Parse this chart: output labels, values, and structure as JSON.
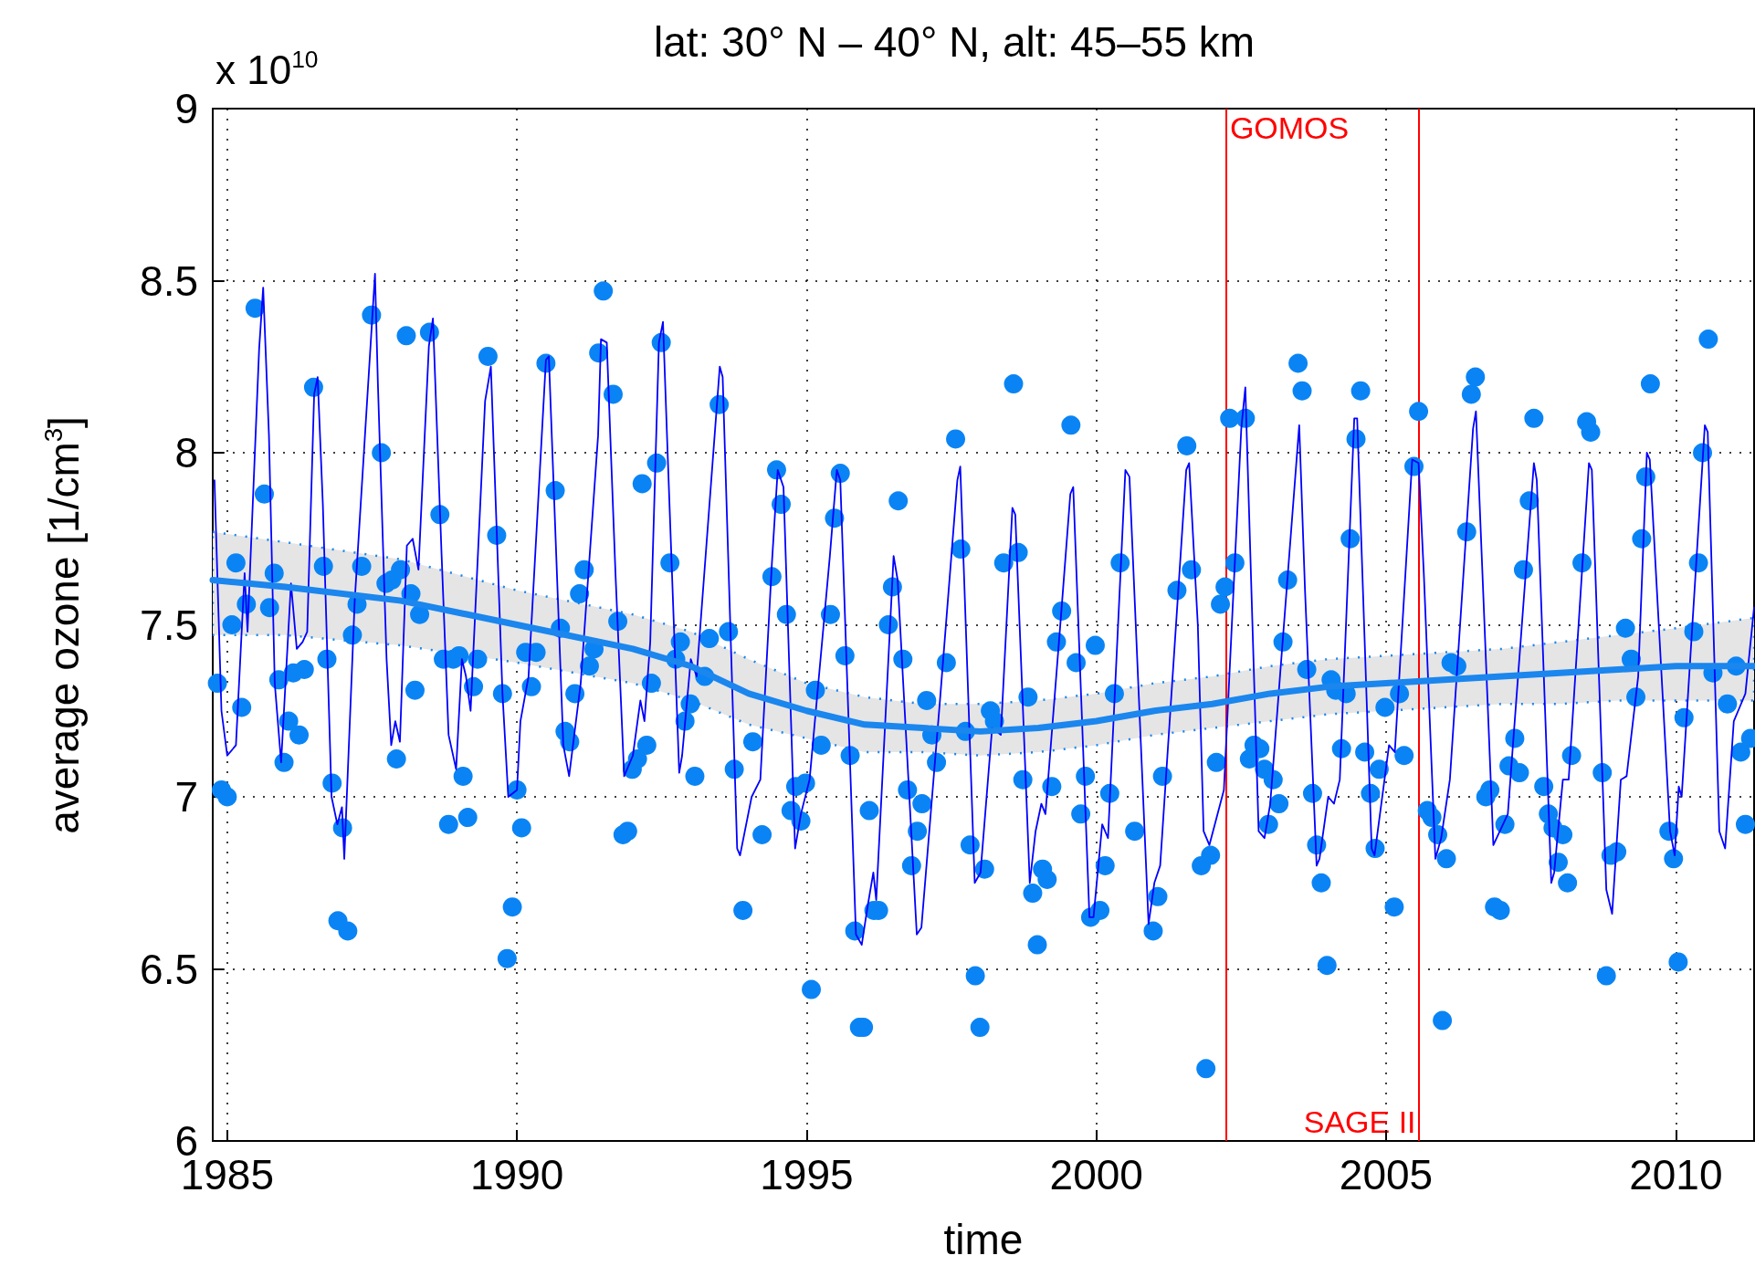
{
  "chart_data": {
    "type": "scatter",
    "title": "lat: 30° N – 40° N, alt: 45–55 km",
    "xlabel": "time",
    "ylabel": "average ozone [1/cm$^{3}$]",
    "annotations": [
      "x 10$^{10}$"
    ],
    "xlim": [
      1984.75,
      2011.35
    ],
    "xticks": [
      1985,
      1990,
      1995,
      2000,
      2005,
      2010
    ],
    "ylim": [
      6,
      9
    ],
    "yticks": [
      6,
      6.5,
      7,
      7.5,
      8,
      8.5,
      9
    ],
    "grid": true,
    "ref_lines": [
      {
        "axis": "x",
        "value": 2002.24,
        "label": "GOMOS",
        "color": "#ff0000"
      },
      {
        "axis": "x",
        "value": 2005.56,
        "label": "SAGE II",
        "color": "#ff0000"
      }
    ],
    "series": [
      {
        "type": "line",
        "color": "#0000ff",
        "marker": "none",
        "line_style": "solid",
        "x": [
          1984.78,
          1984.9,
          1985.0,
          1985.15,
          1985.3,
          1985.35,
          1985.55,
          1985.62,
          1985.72,
          1985.82,
          1985.93,
          1986.1,
          1986.2,
          1986.3,
          1986.38,
          1986.5,
          1986.56,
          1986.65,
          1986.8,
          1986.9,
          1986.98,
          1987.02,
          1987.2,
          1987.55,
          1987.6,
          1987.75,
          1987.83,
          1987.9,
          1987.98,
          1988.1,
          1988.2,
          1988.3,
          1988.48,
          1988.55,
          1988.7,
          1988.82,
          1988.95,
          1989.05,
          1989.12,
          1989.2,
          1989.45,
          1989.55,
          1989.75,
          1989.85,
          1990.0,
          1990.06,
          1990.2,
          1990.5,
          1990.55,
          1990.8,
          1990.9,
          1991.1,
          1991.4,
          1991.45,
          1991.55,
          1991.7,
          1991.85,
          1992.0,
          1992.13,
          1992.2,
          1992.3,
          1992.45,
          1992.52,
          1992.6,
          1992.8,
          1992.85,
          1993.0,
          1993.1,
          1993.5,
          1993.55,
          1993.8,
          1993.85,
          1994.05,
          1994.2,
          1994.4,
          1994.5,
          1994.6,
          1994.8,
          1994.9,
          1995.05,
          1995.4,
          1995.52,
          1995.58,
          1995.85,
          1995.95,
          1996.05,
          1996.15,
          1996.2,
          1996.5,
          1996.57,
          1996.9,
          1996.98,
          1997.3,
          1997.6,
          1997.65,
          1997.9,
          1998.0,
          1998.2,
          1998.35,
          1998.55,
          1998.6,
          1998.85,
          1998.95,
          1999.05,
          1999.12,
          1999.4,
          1999.55,
          1999.6,
          1999.88,
          1999.95,
          2000.1,
          2000.2,
          2000.5,
          2000.57,
          2000.9,
          2001.0,
          2001.1,
          2001.55,
          2001.6,
          2001.75,
          2001.85,
          2001.95,
          2002.2,
          2002.5,
          2002.57,
          2002.8,
          2002.9,
          2003.0,
          2003.5,
          2003.6,
          2003.8,
          2003.85,
          2004.0,
          2004.1,
          2004.2,
          2004.45,
          2004.5,
          2004.75,
          2004.8,
          2005.05,
          2005.15,
          2005.45,
          2005.56,
          2005.65,
          2005.85,
          2005.95,
          2006.1,
          2006.5,
          2006.55,
          2006.85,
          2007.1,
          2007.55,
          2007.6,
          2007.85,
          2007.9,
          2008.05,
          2008.15,
          2008.5,
          2008.55,
          2008.8,
          2008.9,
          2009.05,
          2009.15,
          2009.35,
          2009.5,
          2009.55,
          2009.9,
          2009.98,
          2010.05,
          2010.1,
          2010.5,
          2010.55,
          2010.75,
          2010.85,
          2011.0,
          2011.1,
          2011.2,
          2011.35
        ],
        "values": [
          7.92,
          7.25,
          7.12,
          7.15,
          7.65,
          7.48,
          8.3,
          8.48,
          8.05,
          7.33,
          7.1,
          7.62,
          7.43,
          7.45,
          7.48,
          8.17,
          8.22,
          7.85,
          7.0,
          6.92,
          6.97,
          6.82,
          7.57,
          8.52,
          8.2,
          7.4,
          7.15,
          7.22,
          7.16,
          7.73,
          7.75,
          7.66,
          8.31,
          8.39,
          7.7,
          7.18,
          7.08,
          7.4,
          7.35,
          7.25,
          8.15,
          8.25,
          7.3,
          7.0,
          7.02,
          7.22,
          7.35,
          8.27,
          8.28,
          7.15,
          7.06,
          7.33,
          8.05,
          8.33,
          8.32,
          7.65,
          7.06,
          7.12,
          7.28,
          7.22,
          7.45,
          8.32,
          8.38,
          8.0,
          7.07,
          7.12,
          7.4,
          7.35,
          8.25,
          8.22,
          6.85,
          6.83,
          7.0,
          7.05,
          7.68,
          7.95,
          7.9,
          6.85,
          6.95,
          7.05,
          7.7,
          7.95,
          7.92,
          6.6,
          6.57,
          6.68,
          6.78,
          6.7,
          7.7,
          7.63,
          6.6,
          6.62,
          7.28,
          7.92,
          7.96,
          6.75,
          6.78,
          7.2,
          7.18,
          7.84,
          7.82,
          6.75,
          6.9,
          6.98,
          6.95,
          7.55,
          7.88,
          7.9,
          6.65,
          6.65,
          6.92,
          6.88,
          7.95,
          7.93,
          6.63,
          6.75,
          6.8,
          7.95,
          7.97,
          7.5,
          6.9,
          6.86,
          7.02,
          8.07,
          8.19,
          6.9,
          6.88,
          6.98,
          8.08,
          7.6,
          6.8,
          6.82,
          7.0,
          6.98,
          7.05,
          8.1,
          8.1,
          6.85,
          6.83,
          7.15,
          7.13,
          7.98,
          7.97,
          7.65,
          6.82,
          6.88,
          7.05,
          8.07,
          8.12,
          6.86,
          6.95,
          7.97,
          7.92,
          6.75,
          6.78,
          7.05,
          7.05,
          7.97,
          7.95,
          6.73,
          6.66,
          7.05,
          7.06,
          7.35,
          8.0,
          7.98,
          6.9,
          6.83,
          7.03,
          7.0,
          8.08,
          8.06,
          6.9,
          6.85,
          7.22,
          7.26,
          7.3,
          7.55
        ]
      },
      {
        "type": "line",
        "color": "#1a86ee",
        "marker": "none",
        "line_style": "solid",
        "x": [
          1984.75,
          1986,
          1988,
          1990,
          1992,
          1993,
          1994,
          1995,
          1996,
          1997,
          1998,
          1999,
          2000,
          2001,
          2002,
          2003,
          2004,
          2005,
          2006,
          2007,
          2008,
          2009,
          2010,
          2011.35
        ],
        "values": [
          7.63,
          7.61,
          7.57,
          7.5,
          7.43,
          7.38,
          7.3,
          7.25,
          7.21,
          7.2,
          7.19,
          7.2,
          7.22,
          7.25,
          7.27,
          7.3,
          7.32,
          7.33,
          7.34,
          7.35,
          7.36,
          7.37,
          7.38,
          7.38
        ],
        "lower": [
          7.47,
          7.47,
          7.44,
          7.39,
          7.33,
          7.28,
          7.21,
          7.17,
          7.13,
          7.13,
          7.12,
          7.13,
          7.15,
          7.18,
          7.2,
          7.22,
          7.24,
          7.25,
          7.26,
          7.27,
          7.27,
          7.28,
          7.28,
          7.28
        ],
        "upper": [
          7.77,
          7.74,
          7.69,
          7.6,
          7.53,
          7.48,
          7.4,
          7.33,
          7.29,
          7.27,
          7.27,
          7.28,
          7.3,
          7.33,
          7.35,
          7.38,
          7.4,
          7.41,
          7.42,
          7.43,
          7.45,
          7.47,
          7.49,
          7.52
        ]
      },
      {
        "color": "#0a84f5",
        "marker": "circle",
        "x": [
          1984.83,
          1984.9,
          1985.0,
          1985.08,
          1985.15,
          1985.25,
          1985.33,
          1985.48,
          1985.64,
          1985.73,
          1985.81,
          1985.89,
          1985.98,
          1986.06,
          1986.14,
          1986.24,
          1986.33,
          1986.49,
          1986.66,
          1986.72,
          1986.81,
          1986.91,
          1986.99,
          1987.08,
          1987.16,
          1987.24,
          1987.32,
          1987.49,
          1987.66,
          1987.74,
          1987.84,
          1987.92,
          1987.99,
          1988.09,
          1988.17,
          1988.24,
          1988.32,
          1988.49,
          1988.67,
          1988.73,
          1988.82,
          1988.9,
          1989.0,
          1989.07,
          1989.15,
          1989.25,
          1989.32,
          1989.5,
          1989.65,
          1989.75,
          1989.83,
          1989.92,
          1990.0,
          1990.08,
          1990.15,
          1990.25,
          1990.33,
          1990.5,
          1990.66,
          1990.75,
          1990.83,
          1990.91,
          1991.0,
          1991.08,
          1991.16,
          1991.25,
          1991.33,
          1991.41,
          1991.49,
          1991.66,
          1991.74,
          1991.83,
          1991.91,
          1991.99,
          1992.08,
          1992.16,
          1992.24,
          1992.32,
          1992.41,
          1992.49,
          1992.64,
          1992.74,
          1992.82,
          1992.9,
          1992.99,
          1993.07,
          1993.24,
          1993.32,
          1993.49,
          1993.65,
          1993.75,
          1993.9,
          1994.07,
          1994.23,
          1994.4,
          1994.48,
          1994.56,
          1994.65,
          1994.73,
          1994.81,
          1994.9,
          1994.98,
          1995.08,
          1995.15,
          1995.25,
          1995.41,
          1995.48,
          1995.58,
          1995.66,
          1995.75,
          1995.83,
          1995.91,
          1995.98,
          1996.08,
          1996.16,
          1996.24,
          1996.41,
          1996.48,
          1996.58,
          1996.66,
          1996.74,
          1996.81,
          1996.91,
          1996.99,
          1997.07,
          1997.16,
          1997.24,
          1997.41,
          1997.57,
          1997.66,
          1997.74,
          1997.82,
          1997.91,
          1997.99,
          1998.07,
          1998.17,
          1998.24,
          1998.4,
          1998.57,
          1998.65,
          1998.73,
          1998.82,
          1998.9,
          1998.98,
          1999.07,
          1999.15,
          1999.23,
          1999.31,
          1999.4,
          1999.56,
          1999.65,
          1999.73,
          1999.81,
          1999.9,
          1999.98,
          2000.06,
          2000.15,
          2000.23,
          2000.31,
          2000.41,
          2000.66,
          2000.98,
          2001.06,
          2001.14,
          2001.39,
          2001.56,
          2001.64,
          2001.81,
          2001.89,
          2001.97,
          2002.07,
          2002.14,
          2002.22,
          2002.3,
          2002.39,
          2002.57,
          2002.64,
          2002.72,
          2002.82,
          2002.9,
          2002.97,
          2003.05,
          2003.15,
          2003.22,
          2003.3,
          2003.48,
          2003.55,
          2003.63,
          2003.73,
          2003.8,
          2003.88,
          2003.98,
          2004.05,
          2004.13,
          2004.23,
          2004.31,
          2004.38,
          2004.48,
          2004.56,
          2004.63,
          2004.73,
          2004.81,
          2004.88,
          2004.98,
          2005.14,
          2005.23,
          2005.31,
          2005.48,
          2005.56,
          2005.71,
          2005.79,
          2005.89,
          2005.97,
          2006.04,
          2006.12,
          2006.22,
          2006.39,
          2006.47,
          2006.54,
          2006.72,
          2006.79,
          2006.87,
          2006.97,
          2007.05,
          2007.12,
          2007.22,
          2007.3,
          2007.37,
          2007.47,
          2007.55,
          2007.72,
          2007.8,
          2007.88,
          2007.97,
          2008.05,
          2008.13,
          2008.2,
          2008.38,
          2008.46,
          2008.53,
          2008.73,
          2008.8,
          2008.88,
          2008.98,
          2009.13,
          2009.23,
          2009.31,
          2009.41,
          2009.48,
          2009.56,
          2009.88,
          2009.96,
          2010.04,
          2010.14,
          2010.31,
          2010.39,
          2010.46,
          2010.56,
          2010.64,
          2010.89,
          2011.04,
          2011.12,
          2011.2,
          2011.29
        ],
        "values": [
          7.33,
          7.02,
          7.0,
          7.5,
          7.68,
          7.26,
          7.56,
          8.42,
          7.88,
          7.55,
          7.65,
          7.34,
          7.1,
          7.22,
          7.36,
          7.18,
          7.37,
          8.19,
          7.67,
          7.4,
          7.04,
          6.64,
          6.91,
          6.61,
          7.47,
          7.56,
          7.67,
          8.4,
          8.0,
          7.62,
          7.63,
          7.11,
          7.66,
          8.34,
          7.59,
          7.31,
          7.53,
          8.35,
          7.82,
          7.4,
          6.92,
          7.4,
          7.41,
          7.06,
          6.94,
          7.32,
          7.4,
          8.28,
          7.76,
          7.3,
          6.53,
          6.68,
          7.02,
          6.91,
          7.42,
          7.32,
          7.42,
          8.26,
          7.89,
          7.49,
          7.19,
          7.16,
          7.3,
          7.59,
          7.66,
          7.38,
          7.43,
          8.29,
          8.47,
          8.17,
          7.51,
          6.89,
          6.9,
          7.08,
          7.11,
          7.91,
          7.15,
          7.33,
          7.97,
          8.32,
          7.68,
          7.4,
          7.45,
          7.22,
          7.27,
          7.06,
          7.35,
          7.46,
          8.14,
          7.48,
          7.08,
          6.67,
          7.16,
          6.89,
          7.64,
          7.95,
          7.85,
          7.53,
          6.96,
          7.03,
          6.93,
          7.04,
          6.44,
          7.31,
          7.15,
          7.53,
          7.81,
          7.94,
          7.41,
          7.12,
          6.61,
          6.33,
          6.33,
          6.96,
          6.67,
          6.67,
          7.5,
          7.61,
          7.86,
          7.4,
          7.02,
          6.8,
          6.9,
          6.98,
          7.28,
          7.18,
          7.1,
          7.39,
          8.04,
          7.72,
          7.19,
          6.86,
          6.48,
          6.33,
          6.79,
          7.25,
          7.22,
          7.68,
          8.2,
          7.71,
          7.05,
          7.29,
          6.72,
          6.57,
          6.79,
          6.76,
          7.03,
          7.45,
          7.54,
          8.08,
          7.39,
          6.95,
          7.06,
          6.65,
          7.44,
          6.67,
          6.8,
          7.01,
          7.3,
          7.68,
          6.9,
          6.61,
          6.71,
          7.06,
          7.6,
          8.02,
          7.66,
          6.8,
          6.21,
          6.83,
          7.1,
          7.56,
          7.61,
          8.1,
          7.68,
          8.1,
          7.11,
          7.15,
          7.14,
          7.08,
          6.92,
          7.05,
          6.98,
          7.45,
          7.63,
          8.26,
          8.18,
          7.37,
          7.01,
          6.86,
          6.75,
          6.51,
          7.34,
          7.31,
          7.14,
          7.3,
          7.75,
          8.04,
          8.18,
          7.13,
          7.01,
          6.85,
          7.08,
          7.26,
          6.68,
          7.3,
          7.12,
          7.96,
          8.12,
          6.96,
          6.94,
          6.89,
          6.35,
          6.82,
          7.39,
          7.38,
          7.77,
          8.17,
          8.22,
          7.0,
          7.02,
          6.68,
          6.67,
          6.92,
          7.09,
          7.17,
          7.07,
          7.66,
          7.86,
          8.1,
          7.03,
          6.95,
          6.91,
          6.81,
          6.89,
          6.75,
          7.12,
          7.68,
          8.09,
          8.06,
          7.07,
          6.48,
          6.83,
          6.84,
          7.49,
          7.4,
          7.29,
          7.75,
          7.93,
          8.2,
          6.9,
          6.82,
          6.52,
          7.23,
          7.48,
          7.68,
          8.0,
          8.33,
          7.36,
          7.27,
          7.38,
          7.13,
          6.92,
          7.17
        ]
      }
    ]
  }
}
